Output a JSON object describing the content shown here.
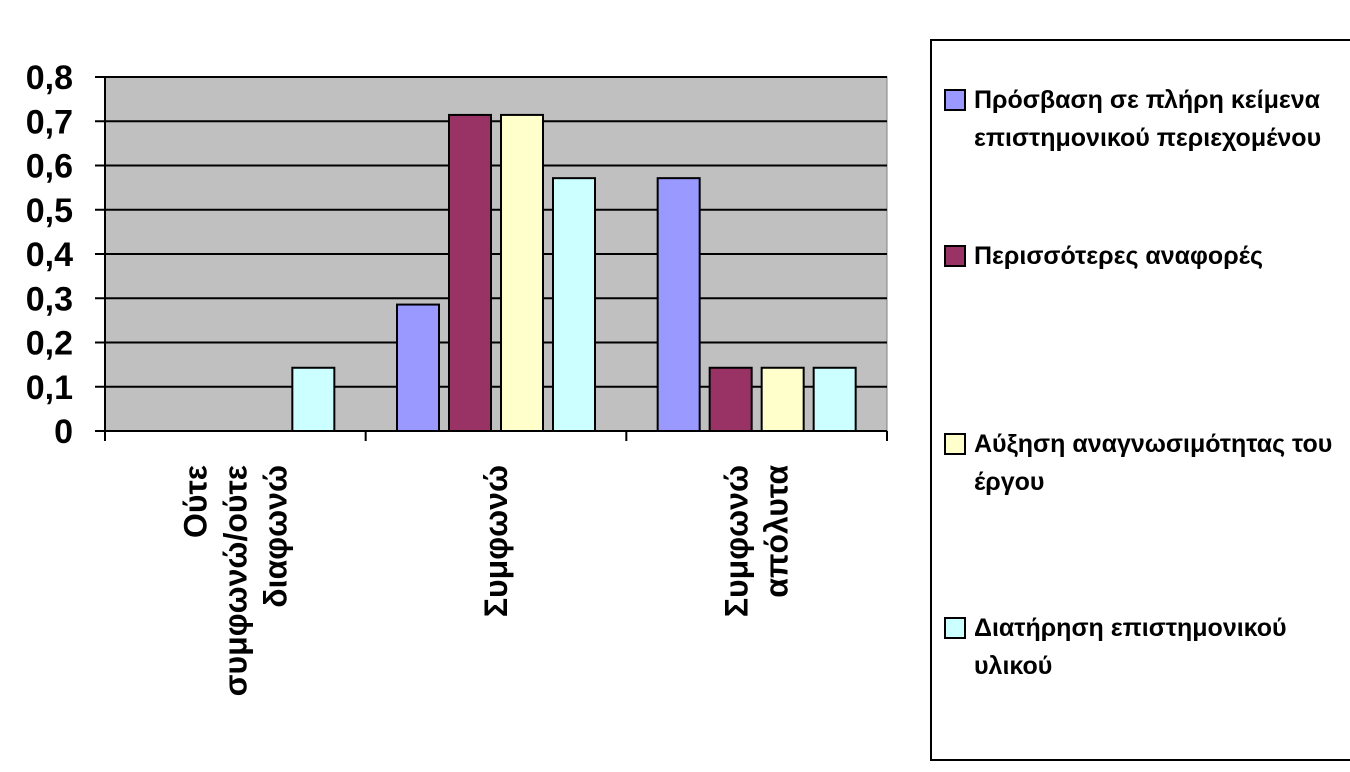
{
  "chart_data": {
    "type": "bar",
    "categories": [
      [
        "Ούτε",
        "συμφωνώ/ούτε",
        "διαφωνώ"
      ],
      [
        "Συμφωνώ"
      ],
      [
        "Συμφωνώ",
        "απόλυτα"
      ]
    ],
    "series": [
      {
        "name": "Πρόσβαση σε πλήρη κείμενα επιστημονικού περιεχομένου",
        "color": "#9999ff",
        "values": [
          0,
          0.2857,
          0.5714
        ]
      },
      {
        "name": "Περισσότερες αναφορές",
        "color": "#993366",
        "values": [
          0,
          0.7143,
          0.1429
        ]
      },
      {
        "name": "Αύξηση αναγνωσιμότητας του έργου",
        "color": "#ffffcc",
        "values": [
          0,
          0.7143,
          0.1429
        ]
      },
      {
        "name": "Διατήρηση επιστημονικού υλικού",
        "color": "#ccffff",
        "values": [
          0.1429,
          0.5714,
          0.1429
        ]
      }
    ],
    "ylim": [
      0,
      0.8
    ],
    "yticks": [
      0,
      0.1,
      0.2,
      0.3,
      0.4,
      0.5,
      0.6,
      0.7,
      0.8
    ],
    "ytick_labels": [
      "0",
      "0,1",
      "0,2",
      "0,3",
      "0,4",
      "0,5",
      "0,6",
      "0,7",
      "0,8"
    ],
    "grid": true,
    "plot_background": "#c0c0c0",
    "legend_position": "right"
  }
}
